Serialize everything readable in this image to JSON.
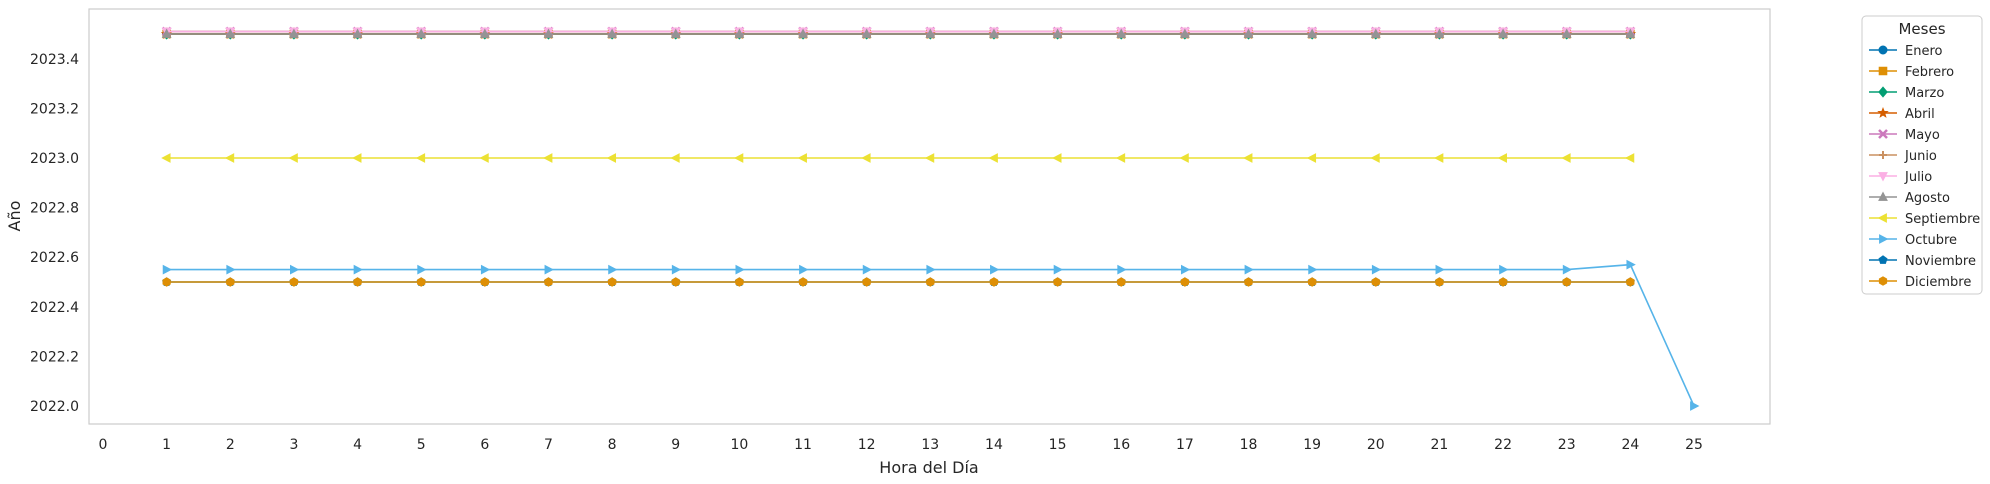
{
  "chart_data": {
    "type": "line",
    "title": "",
    "xlabel": "Hora del Día",
    "ylabel": "Año",
    "xlim": [
      -0.3,
      26.3
    ],
    "ylim": [
      1997.93,
      2023.57
    ],
    "x_ticks": [
      0,
      1,
      2,
      3,
      4,
      5,
      6,
      7,
      8,
      9,
      10,
      11,
      12,
      13,
      14,
      15,
      16,
      17,
      18,
      19,
      20,
      21,
      22,
      23,
      24,
      25
    ],
    "y_ticks": [
      2022.0,
      2022.2,
      2022.4,
      2022.6,
      2022.8,
      2023.0,
      2023.2,
      2023.4
    ],
    "y_tick_labels": [
      "2022.0",
      "2022.2",
      "2022.4",
      "2022.6",
      "2022.8",
      "2023.0",
      "2023.2",
      "2023.4"
    ],
    "grid": false,
    "legend_title": "Meses",
    "legend_position": "outside-top-right",
    "x": [
      1,
      2,
      3,
      4,
      5,
      6,
      7,
      8,
      9,
      10,
      11,
      12,
      13,
      14,
      15,
      16,
      17,
      18,
      19,
      20,
      21,
      22,
      23,
      24
    ],
    "series": [
      {
        "name": "Enero",
        "color": "#0173b2",
        "marker": "circle",
        "values": [
          2023.5,
          2023.5,
          2023.5,
          2023.5,
          2023.5,
          2023.5,
          2023.5,
          2023.5,
          2023.5,
          2023.5,
          2023.5,
          2023.5,
          2023.5,
          2023.5,
          2023.5,
          2023.5,
          2023.5,
          2023.5,
          2023.5,
          2023.5,
          2023.5,
          2023.5,
          2023.5,
          2023.5
        ]
      },
      {
        "name": "Febrero",
        "color": "#de8f05",
        "marker": "square",
        "values": [
          2023.5,
          2023.5,
          2023.5,
          2023.5,
          2023.5,
          2023.5,
          2023.5,
          2023.5,
          2023.5,
          2023.5,
          2023.5,
          2023.5,
          2023.5,
          2023.5,
          2023.5,
          2023.5,
          2023.5,
          2023.5,
          2023.5,
          2023.5,
          2023.5,
          2023.5,
          2023.5,
          2023.5
        ]
      },
      {
        "name": "Marzo",
        "color": "#029e73",
        "marker": "diamond",
        "values": [
          2023.5,
          2023.5,
          2023.5,
          2023.5,
          2023.5,
          2023.5,
          2023.5,
          2023.5,
          2023.5,
          2023.5,
          2023.5,
          2023.5,
          2023.5,
          2023.5,
          2023.5,
          2023.5,
          2023.5,
          2023.5,
          2023.5,
          2023.5,
          2023.5,
          2023.5,
          2023.5,
          2023.5
        ]
      },
      {
        "name": "Abril",
        "color": "#d55e00",
        "marker": "star",
        "values": [
          2023.5,
          2023.5,
          2023.5,
          2023.5,
          2023.5,
          2023.5,
          2023.5,
          2023.5,
          2023.5,
          2023.5,
          2023.5,
          2023.5,
          2023.5,
          2023.5,
          2023.5,
          2023.5,
          2023.5,
          2023.5,
          2023.5,
          2023.5,
          2023.5,
          2023.5,
          2023.5,
          2023.5
        ]
      },
      {
        "name": "Mayo",
        "color": "#cc78bc",
        "marker": "x",
        "values": [
          2023.51,
          2023.51,
          2023.51,
          2023.51,
          2023.51,
          2023.51,
          2023.51,
          2023.51,
          2023.51,
          2023.51,
          2023.51,
          2023.51,
          2023.51,
          2023.51,
          2023.51,
          2023.51,
          2023.51,
          2023.51,
          2023.51,
          2023.51,
          2023.51,
          2023.51,
          2023.51,
          2023.51
        ]
      },
      {
        "name": "Junio",
        "color": "#ca9161",
        "marker": "plus",
        "values": [
          2023.51,
          2023.51,
          2023.51,
          2023.51,
          2023.51,
          2023.51,
          2023.51,
          2023.51,
          2023.51,
          2023.51,
          2023.51,
          2023.51,
          2023.51,
          2023.51,
          2023.51,
          2023.51,
          2023.51,
          2023.51,
          2023.51,
          2023.51,
          2023.51,
          2023.51,
          2023.51,
          2023.51
        ]
      },
      {
        "name": "Julio",
        "color": "#fbafe4",
        "marker": "triangle-down",
        "values": [
          2023.51,
          2023.51,
          2023.51,
          2023.51,
          2023.51,
          2023.51,
          2023.51,
          2023.51,
          2023.51,
          2023.51,
          2023.51,
          2023.51,
          2023.51,
          2023.51,
          2023.51,
          2023.51,
          2023.51,
          2023.51,
          2023.51,
          2023.51,
          2023.51,
          2023.51,
          2023.51,
          2023.51
        ]
      },
      {
        "name": "Agosto",
        "color": "#949494",
        "marker": "triangle-up",
        "values": [
          2023.5,
          2023.5,
          2023.5,
          2023.5,
          2023.5,
          2023.5,
          2023.5,
          2023.5,
          2023.5,
          2023.5,
          2023.5,
          2023.5,
          2023.5,
          2023.5,
          2023.5,
          2023.5,
          2023.5,
          2023.5,
          2023.5,
          2023.5,
          2023.5,
          2023.5,
          2023.5,
          2023.5
        ]
      },
      {
        "name": "Septiembre",
        "color": "#ece133",
        "marker": "triangle-left",
        "values": [
          2023.0,
          2023.0,
          2023.0,
          2023.0,
          2023.0,
          2023.0,
          2023.0,
          2023.0,
          2023.0,
          2023.0,
          2023.0,
          2023.0,
          2023.0,
          2023.0,
          2023.0,
          2023.0,
          2023.0,
          2023.0,
          2023.0,
          2023.0,
          2023.0,
          2023.0,
          2023.0,
          2023.0
        ]
      },
      {
        "name": "Octubre",
        "color": "#56b4e9",
        "marker": "triangle-right",
        "x": [
          1,
          2,
          3,
          4,
          5,
          6,
          7,
          8,
          9,
          10,
          11,
          12,
          13,
          14,
          15,
          16,
          17,
          18,
          19,
          20,
          21,
          22,
          23,
          24,
          25
        ],
        "values": [
          2022.55,
          2022.55,
          2022.55,
          2022.55,
          2022.55,
          2022.55,
          2022.55,
          2022.55,
          2022.55,
          2022.55,
          2022.55,
          2022.55,
          2022.55,
          2022.55,
          2022.55,
          2022.55,
          2022.55,
          2022.55,
          2022.55,
          2022.55,
          2022.55,
          2022.55,
          2022.55,
          2022.57,
          2022.0
        ]
      },
      {
        "name": "Noviembre",
        "color": "#0173b2",
        "marker": "pentagon",
        "values": [
          2022.5,
          2022.5,
          2022.5,
          2022.5,
          2022.5,
          2022.5,
          2022.5,
          2022.5,
          2022.5,
          2022.5,
          2022.5,
          2022.5,
          2022.5,
          2022.5,
          2022.5,
          2022.5,
          2022.5,
          2022.5,
          2022.5,
          2022.5,
          2022.5,
          2022.5,
          2022.5,
          2022.5
        ]
      },
      {
        "name": "Diciembre",
        "color": "#de8f05",
        "marker": "hexagon",
        "values": [
          2022.5,
          2022.5,
          2022.5,
          2022.5,
          2022.5,
          2022.5,
          2022.5,
          2022.5,
          2022.5,
          2022.5,
          2022.5,
          2022.5,
          2022.5,
          2022.5,
          2022.5,
          2022.5,
          2022.5,
          2022.5,
          2022.5,
          2022.5,
          2022.5,
          2022.5,
          2022.5,
          2022.5
        ]
      }
    ]
  }
}
